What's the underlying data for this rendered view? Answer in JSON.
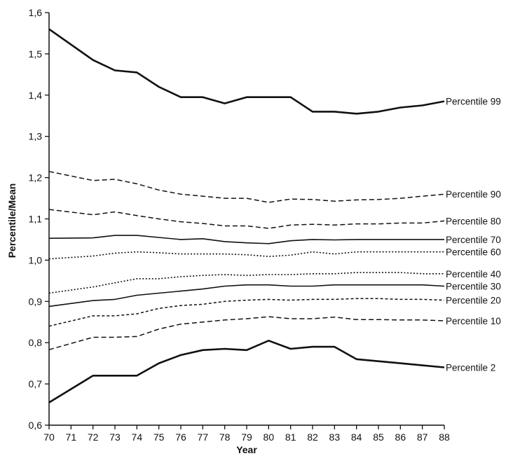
{
  "chart_data": {
    "type": "line",
    "title": "",
    "xlabel": "Year",
    "ylabel": "Percentile/Mean",
    "xlim": [
      70,
      88
    ],
    "ylim": [
      0.6,
      1.6
    ],
    "x_ticks": [
      "70",
      "71",
      "72",
      "73",
      "74",
      "75",
      "76",
      "77",
      "78",
      "79",
      "80",
      "81",
      "82",
      "83",
      "84",
      "85",
      "86",
      "87",
      "88"
    ],
    "y_ticks": [
      "0,6",
      "0,7",
      "0,8",
      "0,9",
      "1,0",
      "1,1",
      "1,2",
      "1,3",
      "1,4",
      "1,5",
      "1,6"
    ],
    "grid": false,
    "legend": "inline labels at right end of each line",
    "x": [
      70,
      72,
      73,
      74,
      75,
      76,
      77,
      78,
      79,
      80,
      81,
      82,
      83,
      84,
      85,
      86,
      87,
      88
    ],
    "series": [
      {
        "name": "Percentile 99",
        "style": "solid-thick",
        "values": [
          1.56,
          1.485,
          1.46,
          1.455,
          1.42,
          1.395,
          1.395,
          1.38,
          1.395,
          1.395,
          1.395,
          1.36,
          1.36,
          1.355,
          1.36,
          1.37,
          1.375,
          1.385
        ]
      },
      {
        "name": "Percentile 90",
        "style": "dashed",
        "values": [
          1.215,
          1.193,
          1.196,
          1.185,
          1.17,
          1.16,
          1.155,
          1.15,
          1.15,
          1.14,
          1.148,
          1.147,
          1.143,
          1.146,
          1.147,
          1.15,
          1.155,
          1.16
        ]
      },
      {
        "name": "Percentile 80",
        "style": "dashed",
        "values": [
          1.123,
          1.11,
          1.117,
          1.108,
          1.1,
          1.093,
          1.089,
          1.083,
          1.083,
          1.077,
          1.085,
          1.087,
          1.085,
          1.088,
          1.088,
          1.09,
          1.09,
          1.095
        ]
      },
      {
        "name": "Percentile 70",
        "style": "solid",
        "values": [
          1.053,
          1.054,
          1.06,
          1.06,
          1.055,
          1.05,
          1.052,
          1.045,
          1.042,
          1.04,
          1.047,
          1.05,
          1.049,
          1.05,
          1.05,
          1.05,
          1.05,
          1.05
        ]
      },
      {
        "name": "Percentile 60",
        "style": "dotted",
        "values": [
          1.003,
          1.01,
          1.017,
          1.02,
          1.018,
          1.015,
          1.015,
          1.015,
          1.013,
          1.009,
          1.012,
          1.02,
          1.015,
          1.02,
          1.02,
          1.02,
          1.02,
          1.02
        ]
      },
      {
        "name": "Percentile 40",
        "style": "dotted",
        "values": [
          0.92,
          0.935,
          0.945,
          0.955,
          0.955,
          0.96,
          0.963,
          0.965,
          0.963,
          0.965,
          0.965,
          0.967,
          0.967,
          0.97,
          0.97,
          0.97,
          0.967,
          0.967
        ]
      },
      {
        "name": "Percentile 30",
        "style": "solid",
        "values": [
          0.888,
          0.902,
          0.905,
          0.915,
          0.92,
          0.925,
          0.93,
          0.937,
          0.94,
          0.94,
          0.937,
          0.937,
          0.94,
          0.94,
          0.94,
          0.94,
          0.94,
          0.937
        ]
      },
      {
        "name": "Percentile 20",
        "style": "dashed-fine",
        "values": [
          0.84,
          0.865,
          0.865,
          0.87,
          0.883,
          0.89,
          0.893,
          0.9,
          0.903,
          0.905,
          0.903,
          0.905,
          0.905,
          0.907,
          0.907,
          0.905,
          0.905,
          0.903
        ]
      },
      {
        "name": "Percentile 10",
        "style": "dashed",
        "values": [
          0.783,
          0.813,
          0.813,
          0.815,
          0.833,
          0.845,
          0.85,
          0.855,
          0.858,
          0.863,
          0.858,
          0.858,
          0.862,
          0.856,
          0.856,
          0.855,
          0.855,
          0.853
        ]
      },
      {
        "name": "Percentile 2",
        "style": "solid-thick",
        "values": [
          0.655,
          0.72,
          0.72,
          0.72,
          0.75,
          0.77,
          0.782,
          0.785,
          0.782,
          0.805,
          0.785,
          0.79,
          0.79,
          0.76,
          0.755,
          0.75,
          0.745,
          0.74
        ]
      }
    ]
  }
}
